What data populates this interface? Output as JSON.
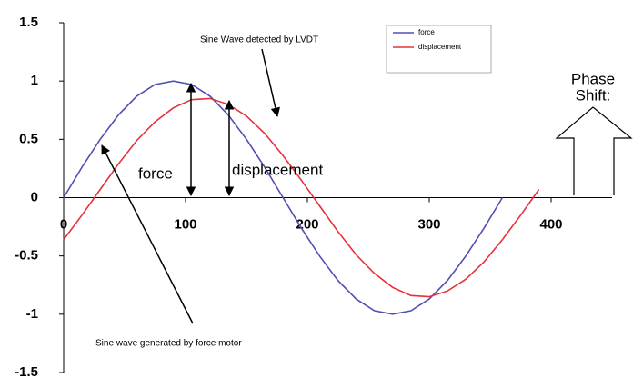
{
  "chart_data": {
    "type": "line",
    "x": [
      0,
      15,
      30,
      45,
      60,
      75,
      90,
      105,
      120,
      135,
      150,
      165,
      180,
      195,
      210,
      225,
      240,
      255,
      270,
      285,
      300,
      315,
      330,
      345,
      360,
      375,
      390
    ],
    "series": [
      {
        "name": "force",
        "color": "#5050b4",
        "values": [
          0,
          0.26,
          0.5,
          0.71,
          0.87,
          0.97,
          1,
          0.97,
          0.87,
          0.71,
          0.5,
          0.26,
          0,
          -0.26,
          -0.5,
          -0.71,
          -0.87,
          -0.97,
          -1,
          -0.97,
          -0.87,
          -0.71,
          -0.5,
          -0.26,
          0,
          null,
          null
        ]
      },
      {
        "name": "displacement",
        "color": "#e8303a",
        "values": [
          -0.36,
          -0.15,
          0.07,
          0.29,
          0.49,
          0.65,
          0.77,
          0.84,
          0.85,
          0.8,
          0.7,
          0.55,
          0.36,
          0.15,
          -0.07,
          -0.29,
          -0.49,
          -0.65,
          -0.77,
          -0.84,
          -0.85,
          -0.8,
          -0.7,
          -0.55,
          -0.36,
          -0.15,
          0.07
        ]
      }
    ],
    "xlim": [
      0,
      450
    ],
    "xticks": [
      0,
      100,
      200,
      300,
      400
    ],
    "ylim": [
      -1.5,
      1.5
    ],
    "yticks": [
      -1.5,
      -1,
      -0.5,
      0,
      0.5,
      1,
      1.5
    ],
    "grid": false,
    "legend": "top-right",
    "annotations": {
      "lvdt": "Sine Wave detected by LVDT",
      "motor": "Sine wave generated by force motor",
      "force": "force",
      "displacement": "displacement",
      "phase": [
        "Phase",
        "Shift:"
      ]
    }
  }
}
